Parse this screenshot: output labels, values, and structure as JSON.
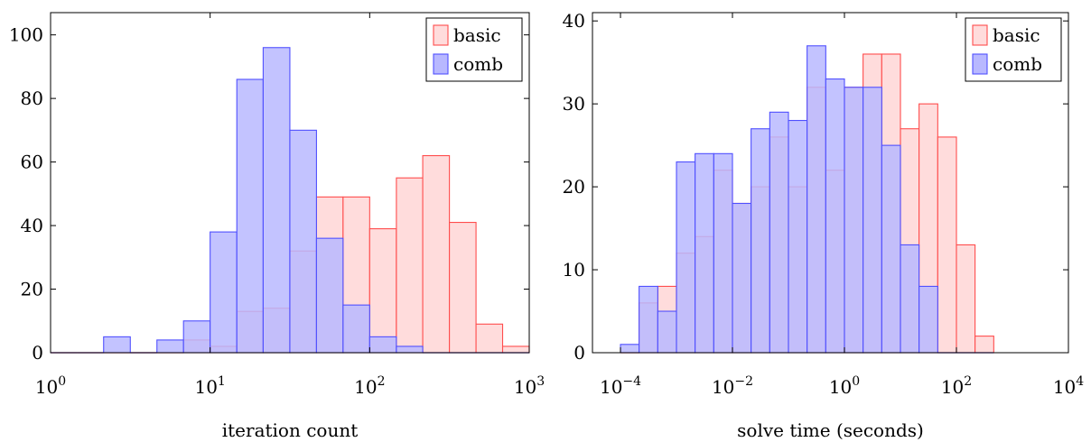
{
  "chart_data": [
    {
      "type": "bar",
      "xscale": "log",
      "xlabel": "iteration count",
      "ylabel": "",
      "xlim": [
        1,
        1000
      ],
      "ylim": [
        0,
        107
      ],
      "x_ticks": [
        {
          "base": "10",
          "exp": "0",
          "value": 1
        },
        {
          "base": "10",
          "exp": "1",
          "value": 10
        },
        {
          "base": "10",
          "exp": "2",
          "value": 100
        },
        {
          "base": "10",
          "exp": "3",
          "value": 1000
        }
      ],
      "y_ticks": [
        0,
        20,
        40,
        60,
        80,
        100
      ],
      "legend": "top-right",
      "grid": false,
      "series": [
        {
          "name": "basic",
          "color": "#ff4d4d",
          "fill": "#ffdcdc",
          "bins": [
            {
              "x0": 1.0,
              "x1": 1.47,
              "value": 0
            },
            {
              "x0": 1.47,
              "x1": 2.15,
              "value": 0
            },
            {
              "x0": 2.15,
              "x1": 3.16,
              "value": 0
            },
            {
              "x0": 3.16,
              "x1": 4.64,
              "value": 0
            },
            {
              "x0": 4.64,
              "x1": 6.81,
              "value": 0
            },
            {
              "x0": 6.81,
              "x1": 10.0,
              "value": 4
            },
            {
              "x0": 10.0,
              "x1": 14.7,
              "value": 2
            },
            {
              "x0": 14.7,
              "x1": 21.5,
              "value": 13
            },
            {
              "x0": 21.5,
              "x1": 31.6,
              "value": 14
            },
            {
              "x0": 31.6,
              "x1": 46.4,
              "value": 32
            },
            {
              "x0": 46.4,
              "x1": 68.1,
              "value": 49
            },
            {
              "x0": 68.1,
              "x1": 100,
              "value": 49
            },
            {
              "x0": 100,
              "x1": 147,
              "value": 39
            },
            {
              "x0": 147,
              "x1": 215,
              "value": 55
            },
            {
              "x0": 215,
              "x1": 316,
              "value": 62
            },
            {
              "x0": 316,
              "x1": 464,
              "value": 41
            },
            {
              "x0": 464,
              "x1": 681,
              "value": 9
            },
            {
              "x0": 681,
              "x1": 1000,
              "value": 2
            }
          ]
        },
        {
          "name": "comb",
          "color": "#5050ff",
          "fill": "#b8b8ff",
          "bins": [
            {
              "x0": 1.0,
              "x1": 1.47,
              "value": 0
            },
            {
              "x0": 1.47,
              "x1": 2.15,
              "value": 0
            },
            {
              "x0": 2.15,
              "x1": 3.16,
              "value": 5
            },
            {
              "x0": 3.16,
              "x1": 4.64,
              "value": 0
            },
            {
              "x0": 4.64,
              "x1": 6.81,
              "value": 4
            },
            {
              "x0": 6.81,
              "x1": 10.0,
              "value": 10
            },
            {
              "x0": 10.0,
              "x1": 14.7,
              "value": 38
            },
            {
              "x0": 14.7,
              "x1": 21.5,
              "value": 86
            },
            {
              "x0": 21.5,
              "x1": 31.6,
              "value": 96
            },
            {
              "x0": 31.6,
              "x1": 46.4,
              "value": 70
            },
            {
              "x0": 46.4,
              "x1": 68.1,
              "value": 36
            },
            {
              "x0": 68.1,
              "x1": 100,
              "value": 15
            },
            {
              "x0": 100,
              "x1": 147,
              "value": 5
            },
            {
              "x0": 147,
              "x1": 215,
              "value": 2
            },
            {
              "x0": 215,
              "x1": 316,
              "value": 0
            },
            {
              "x0": 316,
              "x1": 464,
              "value": 0
            },
            {
              "x0": 464,
              "x1": 681,
              "value": 0
            },
            {
              "x0": 681,
              "x1": 1000,
              "value": 0
            }
          ]
        }
      ]
    },
    {
      "type": "bar",
      "xscale": "log",
      "xlabel": "solve time (seconds)",
      "ylabel": "",
      "xlim": [
        3.16e-05,
        10000
      ],
      "ylim": [
        0,
        41
      ],
      "x_ticks": [
        {
          "base": "10",
          "exp": "−4",
          "value": 0.0001
        },
        {
          "base": "10",
          "exp": "−2",
          "value": 0.01
        },
        {
          "base": "10",
          "exp": "0",
          "value": 1
        },
        {
          "base": "10",
          "exp": "2",
          "value": 100
        },
        {
          "base": "10",
          "exp": "4",
          "value": 10000
        }
      ],
      "y_ticks": [
        0,
        10,
        20,
        30,
        40
      ],
      "legend": "top-right",
      "grid": false,
      "series": [
        {
          "name": "basic",
          "color": "#ff4d4d",
          "fill": "#ffdcdc",
          "bins": [
            {
              "x0": 0.0001,
              "x1": 0.000215,
              "value": 0
            },
            {
              "x0": 0.000215,
              "x1": 0.000464,
              "value": 6
            },
            {
              "x0": 0.000464,
              "x1": 0.001,
              "value": 8
            },
            {
              "x0": 0.001,
              "x1": 0.00215,
              "value": 12
            },
            {
              "x0": 0.00215,
              "x1": 0.00464,
              "value": 14
            },
            {
              "x0": 0.00464,
              "x1": 0.01,
              "value": 22
            },
            {
              "x0": 0.01,
              "x1": 0.0215,
              "value": 18
            },
            {
              "x0": 0.0215,
              "x1": 0.0464,
              "value": 20
            },
            {
              "x0": 0.0464,
              "x1": 0.1,
              "value": 26
            },
            {
              "x0": 0.1,
              "x1": 0.215,
              "value": 20
            },
            {
              "x0": 0.215,
              "x1": 0.464,
              "value": 32
            },
            {
              "x0": 0.464,
              "x1": 1,
              "value": 22
            },
            {
              "x0": 1,
              "x1": 2.15,
              "value": 32
            },
            {
              "x0": 2.15,
              "x1": 4.64,
              "value": 36
            },
            {
              "x0": 4.64,
              "x1": 10,
              "value": 36
            },
            {
              "x0": 10,
              "x1": 21.5,
              "value": 27
            },
            {
              "x0": 21.5,
              "x1": 46.4,
              "value": 30
            },
            {
              "x0": 46.4,
              "x1": 100,
              "value": 26
            },
            {
              "x0": 100,
              "x1": 215,
              "value": 13
            },
            {
              "x0": 215,
              "x1": 464,
              "value": 2
            }
          ]
        },
        {
          "name": "comb",
          "color": "#5050ff",
          "fill": "#b8b8ff",
          "bins": [
            {
              "x0": 0.0001,
              "x1": 0.000215,
              "value": 1
            },
            {
              "x0": 0.000215,
              "x1": 0.000464,
              "value": 8
            },
            {
              "x0": 0.000464,
              "x1": 0.001,
              "value": 5
            },
            {
              "x0": 0.001,
              "x1": 0.00215,
              "value": 23
            },
            {
              "x0": 0.00215,
              "x1": 0.00464,
              "value": 24
            },
            {
              "x0": 0.00464,
              "x1": 0.01,
              "value": 24
            },
            {
              "x0": 0.01,
              "x1": 0.0215,
              "value": 18
            },
            {
              "x0": 0.0215,
              "x1": 0.0464,
              "value": 27
            },
            {
              "x0": 0.0464,
              "x1": 0.1,
              "value": 29
            },
            {
              "x0": 0.1,
              "x1": 0.215,
              "value": 28
            },
            {
              "x0": 0.215,
              "x1": 0.464,
              "value": 37
            },
            {
              "x0": 0.464,
              "x1": 1,
              "value": 33
            },
            {
              "x0": 1,
              "x1": 2.15,
              "value": 32
            },
            {
              "x0": 2.15,
              "x1": 4.64,
              "value": 32
            },
            {
              "x0": 4.64,
              "x1": 10,
              "value": 25
            },
            {
              "x0": 10,
              "x1": 21.5,
              "value": 13
            },
            {
              "x0": 21.5,
              "x1": 46.4,
              "value": 8
            },
            {
              "x0": 46.4,
              "x1": 100,
              "value": 0
            },
            {
              "x0": 100,
              "x1": 215,
              "value": 0
            },
            {
              "x0": 215,
              "x1": 464,
              "value": 0
            }
          ]
        }
      ]
    }
  ]
}
